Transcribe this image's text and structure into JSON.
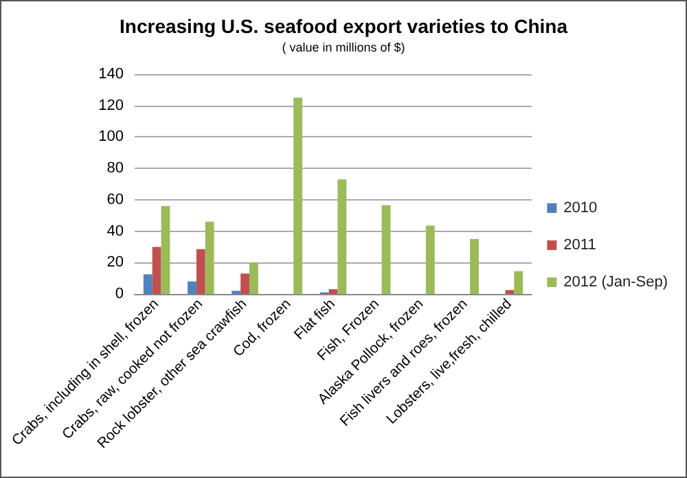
{
  "chart_data": {
    "type": "bar",
    "title": "Increasing U.S. seafood export varieties to China",
    "subtitle": "( value in millions of $)",
    "categories": [
      "Crabs, including in shell, frozen",
      "Crabs, raw, cooked not frozen",
      "Rock lobster, other sea crawfish",
      "Cod, frozen",
      "Flat fish",
      "Fish, Frozen",
      "Alaska Pollock, frozen",
      "Fish livers and roes, frozen",
      "Lobsters, live,fresh, chilled"
    ],
    "series": [
      {
        "name": "2010",
        "color": "#4f81bd",
        "values": [
          12.5,
          8,
          2,
          null,
          1,
          null,
          null,
          null,
          null
        ]
      },
      {
        "name": "2011",
        "color": "#c0504d",
        "values": [
          30,
          28.5,
          13,
          null,
          3,
          null,
          null,
          null,
          2.5
        ]
      },
      {
        "name": "2012 (Jan-Sep)",
        "color": "#9bbb59",
        "values": [
          56,
          46,
          20,
          125,
          73,
          56.5,
          43.5,
          35,
          14.5
        ]
      }
    ],
    "ylim": [
      0,
      140
    ],
    "yticks": [
      0,
      20,
      40,
      60,
      80,
      100,
      120,
      140
    ],
    "grid": "y",
    "legend": "right"
  }
}
